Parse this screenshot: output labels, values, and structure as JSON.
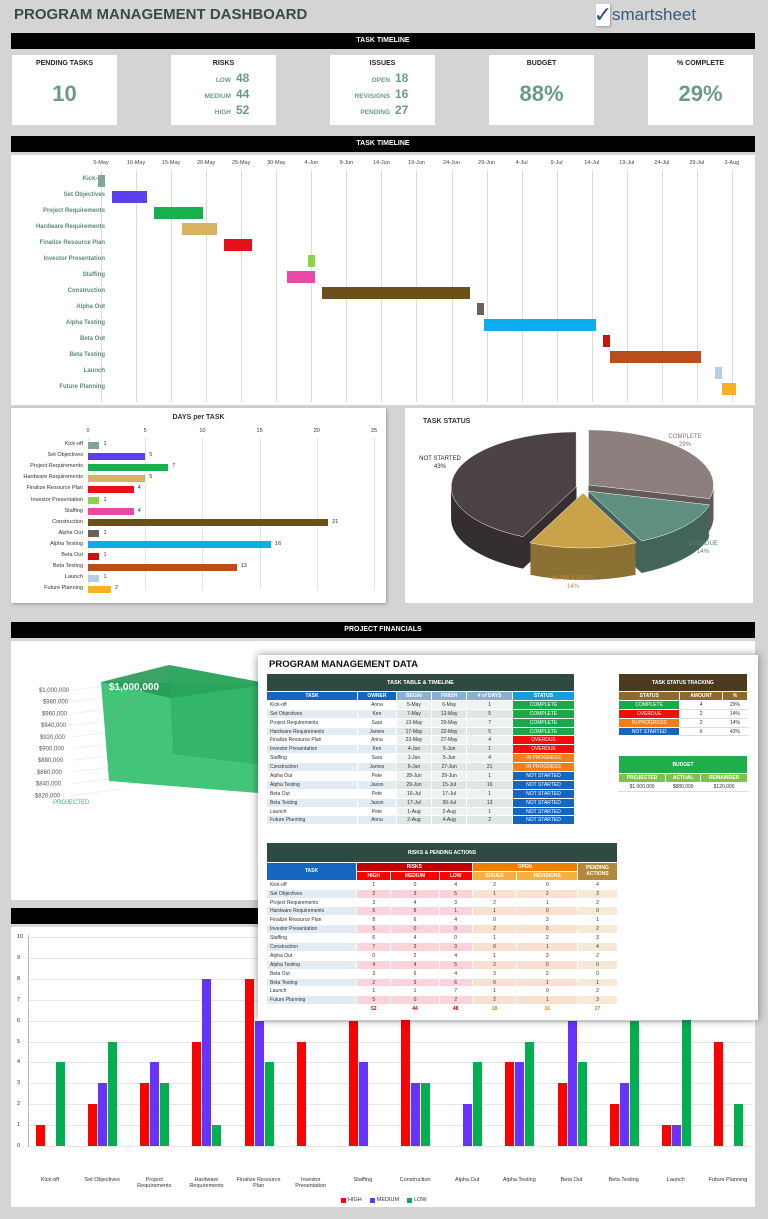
{
  "header": {
    "title": "PROGRAM MANAGEMENT DASHBOARD",
    "logo_text": "smartsheet"
  },
  "kpi_bar": "TASK TIMELINE",
  "kpis": {
    "pending_tasks": {
      "label": "PENDING TASKS",
      "value": "10"
    },
    "risks": {
      "label": "RISKS",
      "items": [
        {
          "label": "LOW",
          "value": "48"
        },
        {
          "label": "MEDIUM",
          "value": "44"
        },
        {
          "label": "HIGH",
          "value": "52"
        }
      ]
    },
    "issues": {
      "label": "ISSUES",
      "items": [
        {
          "label": "OPEN",
          "value": "18"
        },
        {
          "label": "REVISIONS",
          "value": "16"
        },
        {
          "label": "PENDING",
          "value": "27"
        }
      ]
    },
    "budget": {
      "label": "BUDGET",
      "value": "88%"
    },
    "complete": {
      "label": "% COMPLETE",
      "value": "29%"
    }
  },
  "gantt": {
    "title": "TASK TIMELINE",
    "dates": [
      "5-May",
      "10-May",
      "15-May",
      "20-May",
      "25-May",
      "30-May",
      "4-Jun",
      "9-Jun",
      "14-Jun",
      "19-Jun",
      "24-Jun",
      "29-Jun",
      "4-Jul",
      "9-Jul",
      "14-Jul",
      "19-Jul",
      "24-Jul",
      "29-Jul",
      "3-Aug"
    ]
  },
  "tasks": [
    {
      "task": "Kick-off",
      "owner": "Anna",
      "begin": "5-May",
      "finish": "6-May",
      "days": 1,
      "status": "COMPLETE",
      "color": "#7fa69a"
    },
    {
      "task": "Set Objectives",
      "owner": "Ken",
      "begin": "7-May",
      "finish": "12-May",
      "days": 5,
      "status": "COMPLETE",
      "color": "#5b3ff0"
    },
    {
      "task": "Project Requirements",
      "owner": "Sara",
      "begin": "13-May",
      "finish": "20-May",
      "days": 7,
      "status": "COMPLETE",
      "color": "#16b04c"
    },
    {
      "task": "Hardware Requirements",
      "owner": "James",
      "begin": "17-May",
      "finish": "22-May",
      "days": 5,
      "status": "COMPLETE",
      "color": "#d9b263"
    },
    {
      "task": "Finalize Resource Plan",
      "owner": "Anna",
      "begin": "23-May",
      "finish": "27-May",
      "days": 4,
      "status": "OVERDUE",
      "color": "#e8101a"
    },
    {
      "task": "Investor Presentation",
      "owner": "Ken",
      "begin": "4-Jun",
      "finish": "5-Jun",
      "days": 1,
      "status": "OVERDUE",
      "color": "#8bd44a"
    },
    {
      "task": "Staffing",
      "owner": "Sara",
      "begin": "1-Jun",
      "finish": "5-Jun",
      "days": 4,
      "status": "IN PROGRESS",
      "color": "#e84aa4"
    },
    {
      "task": "Construction",
      "owner": "James",
      "begin": "6-Jun",
      "finish": "27-Jun",
      "days": 21,
      "status": "IN PROGRESS",
      "color": "#6b5019"
    },
    {
      "task": "Alpha Out",
      "owner": "Pete",
      "begin": "28-Jun",
      "finish": "29-Jun",
      "days": 1,
      "status": "NOT STARTED",
      "color": "#6b6060"
    },
    {
      "task": "Alpha Testing",
      "owner": "Jason",
      "begin": "29-Jun",
      "finish": "15-Jul",
      "days": 16,
      "status": "NOT STARTED",
      "color": "#0aaeea"
    },
    {
      "task": "Beta Out",
      "owner": "Pete",
      "begin": "16-Jul",
      "finish": "17-Jul",
      "days": 1,
      "status": "NOT STARTED",
      "color": "#cc1111"
    },
    {
      "task": "Beta Testing",
      "owner": "Jason",
      "begin": "17-Jul",
      "finish": "30-Jul",
      "days": 13,
      "status": "NOT STARTED",
      "color": "#b84e1a"
    },
    {
      "task": "Launch",
      "owner": "Pete",
      "begin": "1-Aug",
      "finish": "2-Aug",
      "days": 1,
      "status": "NOT STARTED",
      "color": "#b8cce4"
    },
    {
      "task": "Future Planning",
      "owner": "Anna",
      "begin": "2-Aug",
      "finish": "4-Aug",
      "days": 2,
      "status": "NOT STARTED",
      "color": "#f5b324"
    }
  ],
  "status_colors": {
    "COMPLETE": "#1aa84a",
    "OVERDUE": "#f20c0c",
    "IN PROGRESS": "#f07f1a",
    "NOT STARTED": "#1466c0"
  },
  "days_chart": {
    "title": "DAYS per TASK",
    "ticks": [
      0,
      5,
      10,
      15,
      20,
      25
    ]
  },
  "status_chart": {
    "title": "TASK STATUS",
    "slices": [
      {
        "label": "COMPLETE",
        "pct": "29%",
        "value": 29,
        "color": "#8c7f7d"
      },
      {
        "label": "OVERDUE",
        "pct": "14%",
        "value": 14,
        "color": "#5e8f80"
      },
      {
        "label": "IN PROGRESS",
        "pct": "14%",
        "value": 14,
        "color": "#c9a24a"
      },
      {
        "label": "NOT STARTED",
        "pct": "43%",
        "value": 43,
        "color": "#4a4244"
      }
    ]
  },
  "financials": {
    "title": "PROJECT FINANCIALS",
    "y_ticks": [
      "$1,000,000",
      "$980,000",
      "$960,000",
      "$940,000",
      "$920,000",
      "$900,000",
      "$880,000",
      "$860,000",
      "$840,000",
      "$820,000"
    ],
    "bar_label": "$1,000,000",
    "category": "PROJECTED",
    "color": "#2fbf6a"
  },
  "overlay": {
    "title": "PROGRAM MANAGEMENT DATA",
    "task_table": {
      "title": "TASK TABLE & TIMELINE",
      "columns": [
        "TASK",
        "OWNER",
        "BEGIN",
        "FINISH",
        "# of DAYS",
        "STATUS"
      ]
    },
    "status_tracking": {
      "title": "TASK STATUS TRACKING",
      "columns": [
        "STATUS",
        "AMOUNT",
        "%"
      ],
      "rows": [
        [
          "COMPLETE",
          "4",
          "29%"
        ],
        [
          "OVERDUE",
          "2",
          "14%"
        ],
        [
          "IN PROGRESS",
          "2",
          "14%"
        ],
        [
          "NOT STARTED",
          "6",
          "43%"
        ]
      ]
    },
    "budget": {
      "title": "BUDGET",
      "columns": [
        "PROJECTED",
        "ACTUAL",
        "REMAINDER"
      ],
      "row": [
        "$1,000,000",
        "$880,000",
        "$120,000"
      ]
    },
    "risks_table": {
      "title": "RISKS & PENDING ACTIONS",
      "task_col": "TASK",
      "risks_group": "RISKS",
      "open_group": "OPEN",
      "pending_group": "PENDING ACTIONS",
      "sub": [
        "HIGH",
        "MEDIUM",
        "LOW",
        "ISSUES",
        "REVISIONS"
      ],
      "rows": [
        [
          1,
          0,
          4,
          2,
          0,
          4
        ],
        [
          2,
          3,
          5,
          1,
          2,
          3
        ],
        [
          3,
          4,
          3,
          2,
          1,
          2
        ],
        [
          5,
          8,
          1,
          1,
          0,
          0
        ],
        [
          8,
          6,
          4,
          0,
          3,
          1
        ],
        [
          5,
          0,
          0,
          2,
          0,
          2
        ],
        [
          6,
          4,
          0,
          1,
          2,
          3
        ],
        [
          7,
          3,
          3,
          0,
          1,
          4
        ],
        [
          0,
          2,
          4,
          1,
          3,
          2
        ],
        [
          4,
          4,
          5,
          2,
          0,
          0
        ],
        [
          3,
          6,
          4,
          3,
          2,
          0
        ],
        [
          2,
          3,
          6,
          0,
          1,
          1
        ],
        [
          1,
          1,
          7,
          1,
          0,
          2
        ],
        [
          5,
          0,
          2,
          2,
          1,
          3
        ]
      ],
      "totals": [
        52,
        44,
        48,
        18,
        16,
        27
      ]
    }
  },
  "risk_chart": {
    "y_ticks": [
      0,
      1,
      2,
      3,
      4,
      5,
      6,
      7,
      8,
      9,
      10
    ],
    "categories": [
      "Kick-off",
      "Set Objectives",
      "Project Requirements",
      "Hardware Requirements",
      "Finalize Resource Plan",
      "Investor Presentation",
      "Staffing",
      "Construction",
      "Alpha Out",
      "Alpha Testing",
      "Beta Out",
      "Beta Testing",
      "Launch",
      "Future Planning"
    ],
    "legend": [
      {
        "name": "HIGH",
        "color": "#ff0000"
      },
      {
        "name": "MEDIUM",
        "color": "#6633ff"
      },
      {
        "name": "LOW",
        "color": "#00b050"
      }
    ]
  }
}
